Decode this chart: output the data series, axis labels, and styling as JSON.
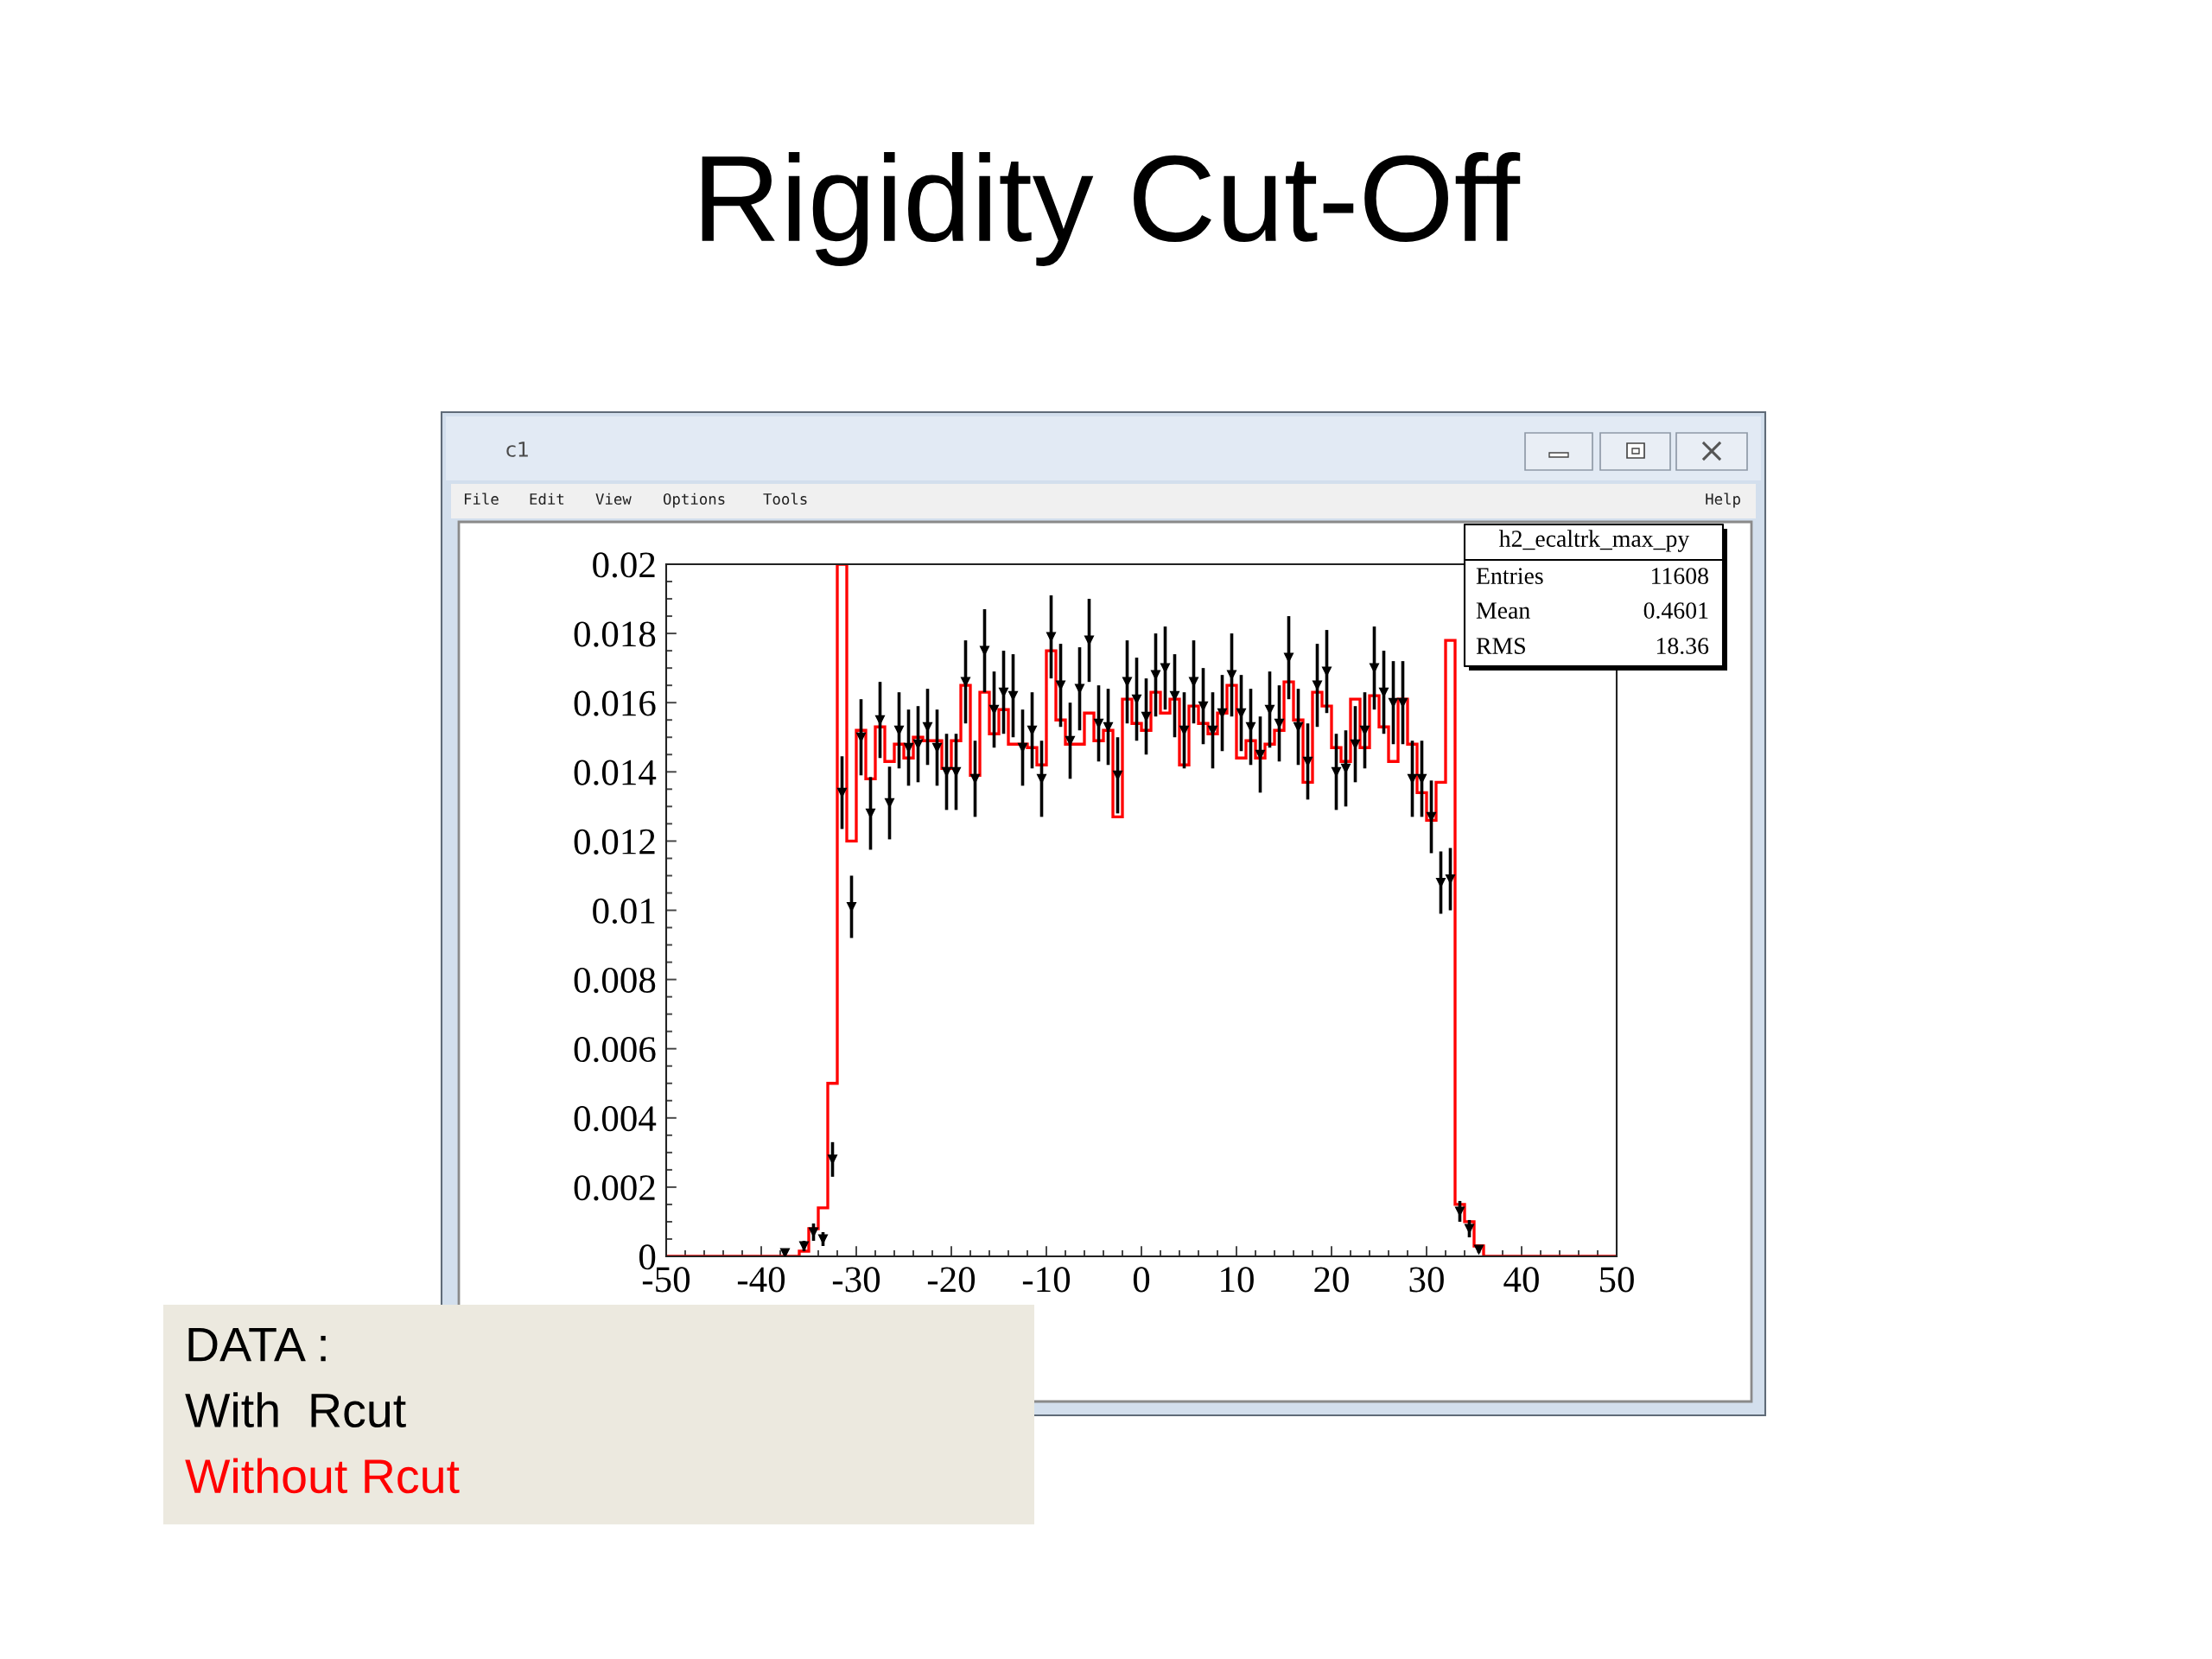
{
  "chart_data": {
    "type": "histogram",
    "title": "Rigidity Cut-Off",
    "bins": [
      -50,
      -49,
      -48,
      -47,
      -46,
      -45,
      -44,
      -43,
      -42,
      -41,
      -40,
      -39,
      -38,
      -37,
      -36,
      -35,
      -34,
      -33,
      -32,
      -31,
      -30,
      -29,
      -28,
      -27,
      -26,
      -25,
      -24,
      -23,
      -22,
      -21,
      -20,
      -19,
      -18,
      -17,
      -16,
      -15,
      -14,
      -13,
      -12,
      -11,
      -10,
      -9,
      -8,
      -7,
      -6,
      -5,
      -4,
      -3,
      -2,
      -1,
      0,
      1,
      2,
      3,
      4,
      5,
      6,
      7,
      8,
      9,
      10,
      11,
      12,
      13,
      14,
      15,
      16,
      17,
      18,
      19,
      20,
      21,
      22,
      23,
      24,
      25,
      26,
      27,
      28,
      29,
      30,
      31,
      32,
      33,
      34,
      35,
      36,
      37,
      38,
      39,
      40,
      41,
      42,
      43,
      44,
      45,
      46,
      47,
      48,
      49,
      50
    ],
    "series": [
      {
        "name": "With  Rcut",
        "type": "scatter",
        "color": "#000000",
        "x": [
          -37.5,
          -35.5,
          -34.5,
          -33.5,
          -32.5,
          -31.5,
          -30.5,
          -29.5,
          -28.5,
          -27.5,
          -26.5,
          -25.5,
          -24.5,
          -23.5,
          -22.5,
          -21.5,
          -20.5,
          -19.5,
          -18.5,
          -17.5,
          -16.5,
          -15.5,
          -14.5,
          -13.5,
          -12.5,
          -11.5,
          -10.5,
          -9.5,
          -8.5,
          -7.5,
          -6.5,
          -5.5,
          -4.5,
          -3.5,
          -2.5,
          -1.5,
          -0.5,
          0.5,
          1.5,
          2.5,
          3.5,
          4.5,
          5.5,
          6.5,
          7.5,
          8.5,
          9.5,
          10.5,
          11.5,
          12.5,
          13.5,
          14.5,
          15.5,
          16.5,
          17.5,
          18.5,
          19.5,
          20.5,
          21.5,
          22.5,
          23.5,
          24.5,
          25.5,
          26.5,
          27.5,
          28.5,
          29.5,
          30.5,
          31.5,
          32.5,
          33.5,
          34.5,
          35.5
        ],
        "values": [
          0.0001,
          0.0003,
          0.0007,
          0.0005,
          0.0028,
          0.0134,
          0.0101,
          0.015,
          0.0128,
          0.0155,
          0.0131,
          0.0152,
          0.0147,
          0.0148,
          0.0153,
          0.0147,
          0.014,
          0.014,
          0.0166,
          0.0138,
          0.0175,
          0.0158,
          0.0163,
          0.0162,
          0.0147,
          0.0152,
          0.0138,
          0.0179,
          0.0165,
          0.0149,
          0.0164,
          0.0178,
          0.0154,
          0.0153,
          0.0139,
          0.0166,
          0.0161,
          0.0156,
          0.0168,
          0.017,
          0.0162,
          0.0152,
          0.0166,
          0.0159,
          0.0152,
          0.0157,
          0.0168,
          0.0157,
          0.0153,
          0.0145,
          0.0158,
          0.0154,
          0.0173,
          0.0153,
          0.0143,
          0.0165,
          0.0169,
          0.014,
          0.0141,
          0.0148,
          0.0152,
          0.017,
          0.0163,
          0.016,
          0.016,
          0.0138,
          0.0138,
          0.0127,
          0.0108,
          0.0109,
          0.0013,
          0.0008,
          0.0002
        ],
        "errors": [
          null,
          0.00015,
          0.00025,
          0.0002,
          0.0005,
          0.00105,
          0.0009,
          0.0011,
          0.00105,
          0.0011,
          0.00105,
          0.0011,
          0.0011,
          0.0011,
          0.0011,
          0.0011,
          0.0011,
          0.0011,
          0.0012,
          0.0011,
          0.0012,
          0.0011,
          0.0012,
          0.0012,
          0.0011,
          0.0011,
          0.0011,
          0.0012,
          0.0012,
          0.0011,
          0.0012,
          0.0012,
          0.0011,
          0.0011,
          0.0011,
          0.0012,
          0.0012,
          0.0011,
          0.0012,
          0.0012,
          0.0012,
          0.0011,
          0.0012,
          0.0011,
          0.0011,
          0.0011,
          0.0012,
          0.0011,
          0.0011,
          0.0011,
          0.0011,
          0.0011,
          0.0012,
          0.0011,
          0.0011,
          0.0012,
          0.0012,
          0.0011,
          0.0011,
          0.0011,
          0.0011,
          0.0012,
          0.0012,
          0.0012,
          0.0012,
          0.0011,
          0.0011,
          0.00105,
          0.0009,
          0.0009,
          0.0003,
          0.00025,
          0.0001
        ]
      },
      {
        "name": "Without Rcut",
        "color": "#ff0000",
        "values": [
          0,
          0,
          0,
          0,
          0,
          0,
          0,
          0,
          0,
          0,
          0,
          0,
          0,
          0,
          0.00015,
          0.0008,
          0.0014,
          0.005,
          0.02,
          0.012,
          0.0152,
          0.0138,
          0.0153,
          0.0143,
          0.0148,
          0.0144,
          0.015,
          0.0149,
          0.0149,
          0.0141,
          0.0149,
          0.0165,
          0.0139,
          0.0163,
          0.0151,
          0.0158,
          0.0148,
          0.0148,
          0.0147,
          0.0142,
          0.0175,
          0.0155,
          0.0148,
          0.0148,
          0.0157,
          0.0149,
          0.0152,
          0.0127,
          0.0161,
          0.0154,
          0.0152,
          0.0163,
          0.0157,
          0.0161,
          0.0142,
          0.0159,
          0.0154,
          0.0151,
          0.0157,
          0.0165,
          0.0144,
          0.0149,
          0.0144,
          0.0148,
          0.0152,
          0.0166,
          0.0155,
          0.0137,
          0.0163,
          0.0159,
          0.0147,
          0.0143,
          0.0161,
          0.0147,
          0.0162,
          0.0153,
          0.0143,
          0.0161,
          0.0148,
          0.0134,
          0.0126,
          0.0137,
          0.0178,
          0.0015,
          0.001,
          0.0003,
          0,
          0,
          0,
          0,
          0,
          0,
          0,
          0,
          0,
          0,
          0,
          0,
          0,
          0
        ]
      }
    ],
    "xlim": [
      -50,
      50
    ],
    "xticks": [
      -50,
      {
        "value": -48,
        "label": null
      },
      {
        "value": -46,
        "label": null
      },
      {
        "value": -44,
        "label": null
      },
      {
        "value": -42,
        "label": null
      },
      -40,
      {
        "value": -38,
        "label": null
      },
      {
        "value": -36,
        "label": null
      },
      {
        "value": -34,
        "label": null
      },
      {
        "value": -32,
        "label": null
      },
      -30,
      {
        "value": -28,
        "label": null
      },
      {
        "value": -26,
        "label": null
      },
      {
        "value": -24,
        "label": null
      },
      {
        "value": -22,
        "label": null
      },
      -20,
      {
        "value": -18,
        "label": null
      },
      {
        "value": -16,
        "label": null
      },
      {
        "value": -14,
        "label": null
      },
      {
        "value": -12,
        "label": null
      },
      -10,
      {
        "value": -8,
        "label": null
      },
      {
        "value": -6,
        "label": null
      },
      {
        "value": -4,
        "label": null
      },
      {
        "value": -2,
        "label": null
      },
      0,
      {
        "value": 2,
        "label": null
      },
      {
        "value": 4,
        "label": null
      },
      {
        "value": 6,
        "label": null
      },
      {
        "value": 8,
        "label": null
      },
      10,
      {
        "value": 12,
        "label": null
      },
      {
        "value": 14,
        "label": null
      },
      {
        "value": 16,
        "label": null
      },
      {
        "value": 18,
        "label": null
      },
      20,
      {
        "value": 22,
        "label": null
      },
      {
        "value": 24,
        "label": null
      },
      {
        "value": 26,
        "label": null
      },
      {
        "value": 28,
        "label": null
      },
      30,
      {
        "value": 32,
        "label": null
      },
      {
        "value": 34,
        "label": null
      },
      {
        "value": 36,
        "label": null
      },
      {
        "value": 38,
        "label": null
      },
      40,
      {
        "value": 42,
        "label": null
      },
      {
        "value": 44,
        "label": null
      },
      {
        "value": 46,
        "label": null
      },
      {
        "value": 48,
        "label": null
      },
      50
    ],
    "ylim": [
      0,
      0.02
    ],
    "yticks": [
      0,
      {
        "value": 0.0005,
        "label": null
      },
      {
        "value": 0.001,
        "label": null
      },
      {
        "value": 0.0015,
        "label": null
      },
      0.002,
      {
        "value": 0.0025,
        "label": null
      },
      {
        "value": 0.003,
        "label": null
      },
      {
        "value": 0.0035,
        "label": null
      },
      0.004,
      {
        "value": 0.0045,
        "label": null
      },
      {
        "value": 0.005,
        "label": null
      },
      {
        "value": 0.0055,
        "label": null
      },
      0.006,
      {
        "value": 0.0065,
        "label": null
      },
      {
        "value": 0.007,
        "label": null
      },
      {
        "value": 0.0075,
        "label": null
      },
      0.008,
      {
        "value": 0.0085,
        "label": null
      },
      {
        "value": 0.009,
        "label": null
      },
      {
        "value": 0.0095,
        "label": null
      },
      0.01,
      {
        "value": 0.0105,
        "label": null
      },
      {
        "value": 0.011,
        "label": null
      },
      {
        "value": 0.0115,
        "label": null
      },
      0.012,
      {
        "value": 0.0125,
        "label": null
      },
      {
        "value": 0.013,
        "label": null
      },
      {
        "value": 0.0135,
        "label": null
      },
      0.014,
      {
        "value": 0.0145,
        "label": null
      },
      {
        "value": 0.015,
        "label": null
      },
      {
        "value": 0.0155,
        "label": null
      },
      0.016,
      {
        "value": 0.0165,
        "label": null
      },
      {
        "value": 0.017,
        "label": null
      },
      {
        "value": 0.0175,
        "label": null
      },
      0.018,
      {
        "value": 0.0185,
        "label": null
      },
      {
        "value": 0.019,
        "label": null
      },
      {
        "value": 0.0195,
        "label": null
      },
      0.02
    ],
    "marker": "triangle",
    "legend": "bottom left",
    "legend_title": "DATA :",
    "annotations": [
      "c1",
      "File",
      "Edit",
      "View",
      "Options",
      "Tools",
      "Help",
      "h2_ecaltrk_max_py",
      "Entries",
      "11608",
      "Mean",
      "0.4601",
      "RMS",
      "18.36"
    ]
  }
}
